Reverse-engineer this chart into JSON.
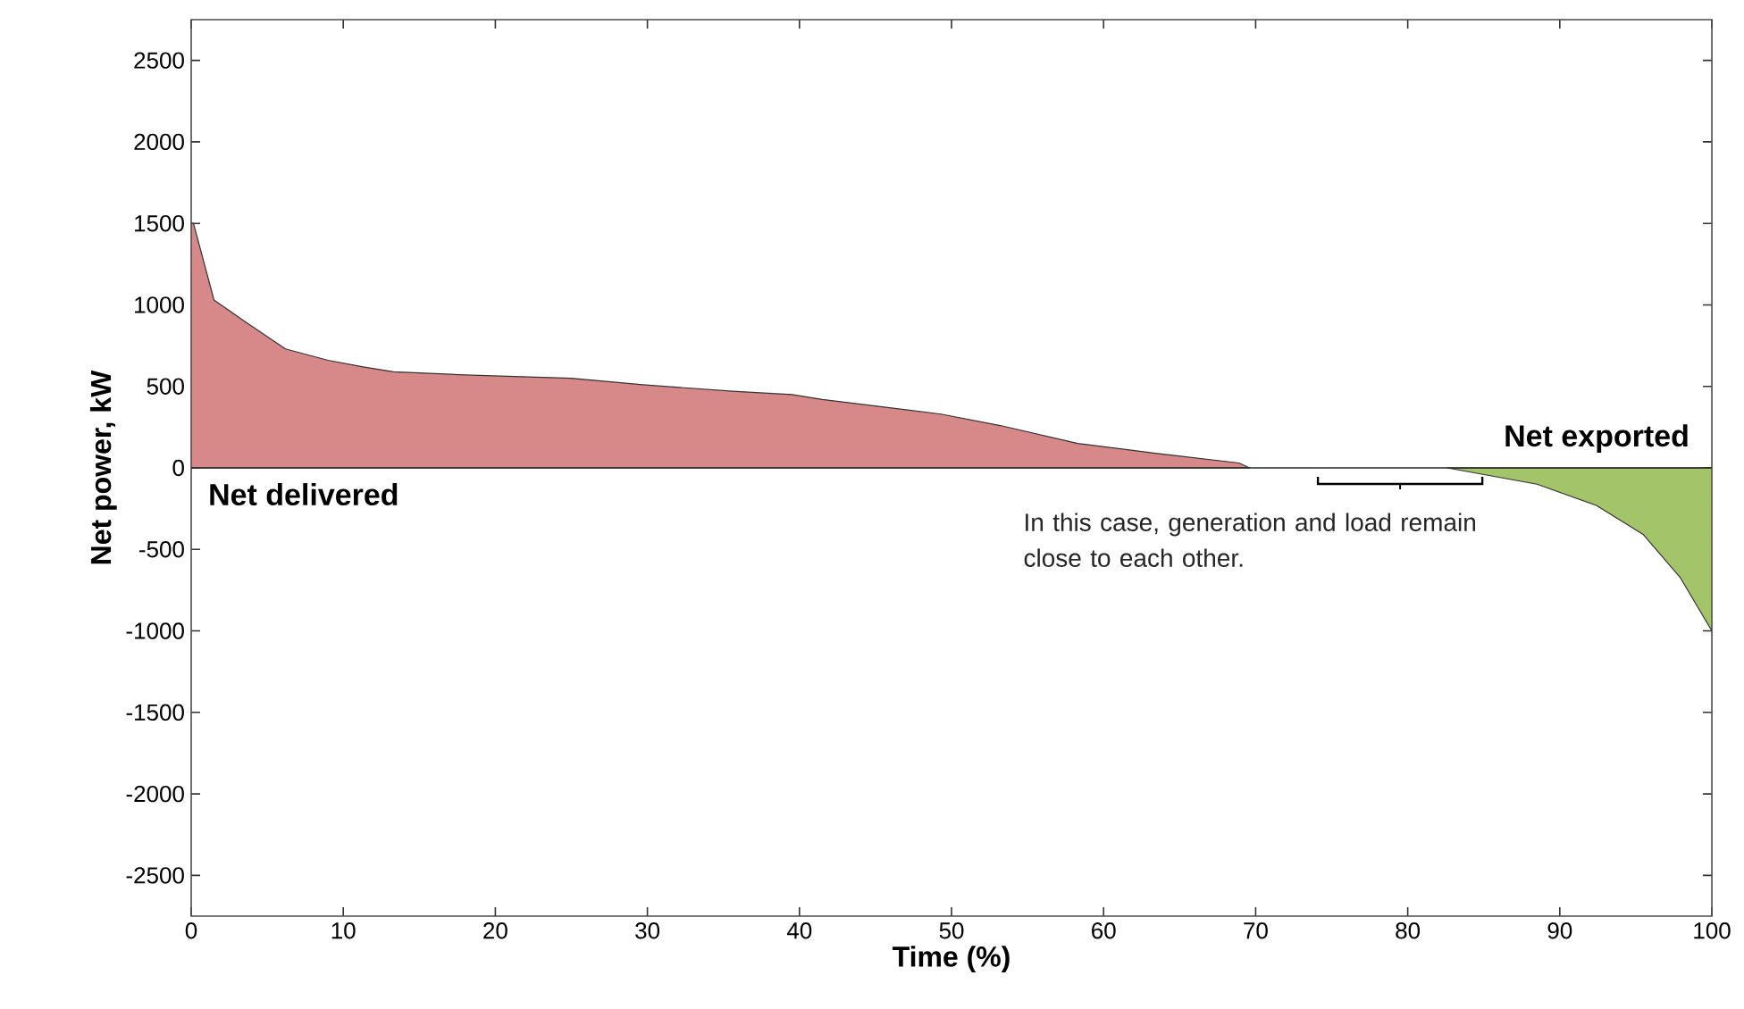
{
  "chart_data": {
    "type": "area",
    "xlabel": "Time (%)",
    "ylabel": "Net power, kW",
    "xlim": [
      0,
      100
    ],
    "xticks": [
      0,
      10,
      20,
      30,
      40,
      50,
      60,
      70,
      80,
      90,
      100
    ],
    "ylim": [
      -2750,
      2750
    ],
    "yticks": [
      -2500,
      -2000,
      -1500,
      -1000,
      -500,
      0,
      500,
      1000,
      1500,
      2000,
      2500
    ],
    "series": [
      {
        "name": "Net delivered",
        "color": "#d7898a",
        "x": [
          0,
          0.15,
          1.5,
          3.5,
          6.2,
          9,
          11.3,
          13.3,
          18,
          25,
          29.7,
          35.6,
          39.5,
          41.5,
          49.3,
          53.2,
          58.3,
          63.4,
          68.9,
          69.6
        ],
        "values": [
          1500,
          1500,
          1030,
          900,
          730,
          660,
          620,
          590,
          570,
          550,
          510,
          470,
          450,
          420,
          330,
          260,
          150,
          90,
          30,
          0
        ]
      },
      {
        "name": "Net exported",
        "color": "#a4c46a",
        "x": [
          82.6,
          88.5,
          92.4,
          95.5,
          97.9,
          100
        ],
        "values": [
          0,
          -100,
          -230,
          -410,
          -670,
          -1000
        ]
      }
    ],
    "annotations": [
      "In this case, generation and load remain close to each other."
    ]
  }
}
